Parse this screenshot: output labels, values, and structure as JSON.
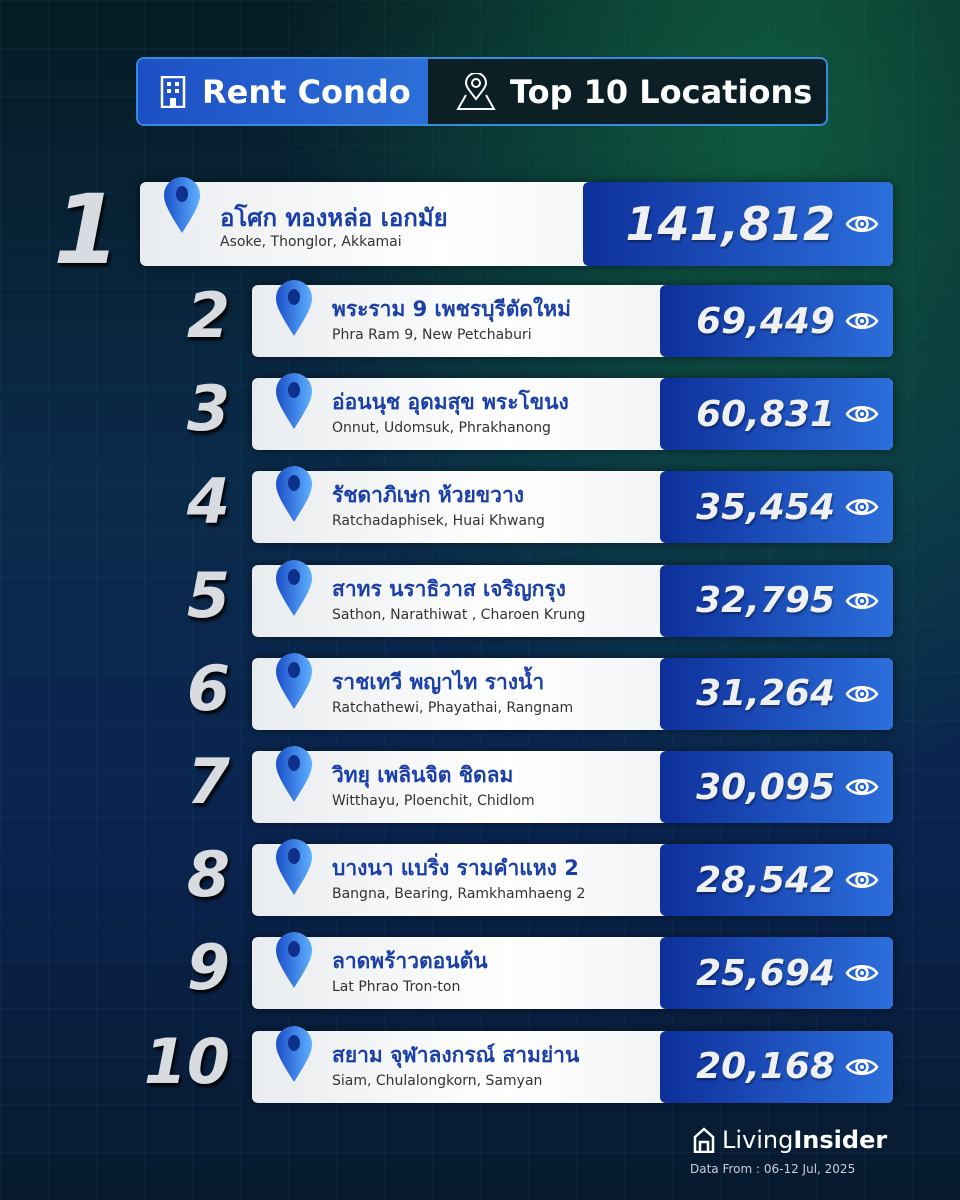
{
  "header": {
    "category": "Rent Condo",
    "title": "Top 10 Locations",
    "category_icon": "building-icon",
    "title_icon": "map-pin-icon"
  },
  "accent": "#1d4fc4",
  "items": [
    {
      "rank": "1",
      "th": "อโศก ทองหล่อ เอกมัย",
      "en": "Asoke, Thonglor, Akkamai",
      "views": "141,812"
    },
    {
      "rank": "2",
      "th": "พระราม 9 เพชรบุรีตัดใหม่",
      "en": "Phra Ram 9, New Petchaburi",
      "views": "69,449"
    },
    {
      "rank": "3",
      "th": "อ่อนนุช อุดมสุข พระโขนง",
      "en": "Onnut, Udomsuk, Phrakhanong",
      "views": "60,831"
    },
    {
      "rank": "4",
      "th": "รัชดาภิเษก ห้วยขวาง",
      "en": "Ratchadaphisek, Huai Khwang",
      "views": "35,454"
    },
    {
      "rank": "5",
      "th": "สาทร นราธิวาส เจริญกรุง",
      "en": "Sathon, Narathiwat , Charoen Krung",
      "views": "32,795"
    },
    {
      "rank": "6",
      "th": "ราชเทวี พญาไท รางน้ำ",
      "en": "Ratchathewi, Phayathai, Rangnam",
      "views": "31,264"
    },
    {
      "rank": "7",
      "th": "วิทยุ เพลินจิต ชิดลม",
      "en": "Witthayu, Ploenchit, Chidlom",
      "views": "30,095"
    },
    {
      "rank": "8",
      "th": "บางนา แบริ่ง รามคำแหง 2",
      "en": "Bangna, Bearing, Ramkhamhaeng 2",
      "views": "28,542"
    },
    {
      "rank": "9",
      "th": "ลาดพร้าวตอนต้น",
      "en": "Lat Phrao Tron-ton",
      "views": "25,694"
    },
    {
      "rank": "10",
      "th": "สยาม จุฬาลงกรณ์ สามย่าน",
      "en": "Siam, Chulalongkorn, Samyan",
      "views": "20,168"
    }
  ],
  "footer": {
    "logo_light": "Living",
    "logo_bold": "Insider",
    "date": "Data From : 06-12 Jul, 2025"
  }
}
